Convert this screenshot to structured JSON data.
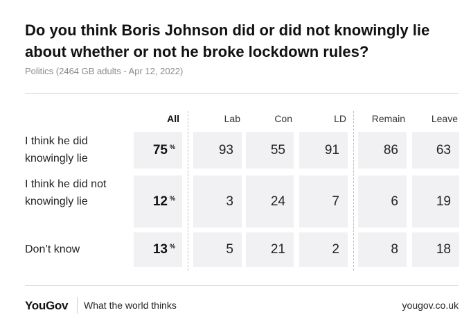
{
  "chart_data": {
    "type": "table",
    "title": "Do you think Boris Johnson did or did not knowingly lie about whether or not he broke lockdown rules?",
    "subtitle": "Politics (2464 GB adults - Apr 12, 2022)",
    "columns": [
      "All",
      "Lab",
      "Con",
      "LD",
      "Remain",
      "Leave"
    ],
    "pct_symbol": "%",
    "rows": [
      {
        "label": "I think he did knowingly lie",
        "all": 75,
        "values": [
          93,
          55,
          91,
          86,
          63
        ]
      },
      {
        "label": "I think he did not knowingly lie",
        "all": 12,
        "values": [
          3,
          24,
          7,
          6,
          19
        ]
      },
      {
        "label": "Don’t know",
        "all": 13,
        "values": [
          5,
          21,
          2,
          8,
          18
        ]
      }
    ]
  },
  "footer": {
    "logo": "YouGov",
    "tagline": "What the world thinks",
    "url": "yougov.co.uk"
  },
  "colors": {
    "cell_bg": "#f1f1f3",
    "text": "#222222"
  }
}
